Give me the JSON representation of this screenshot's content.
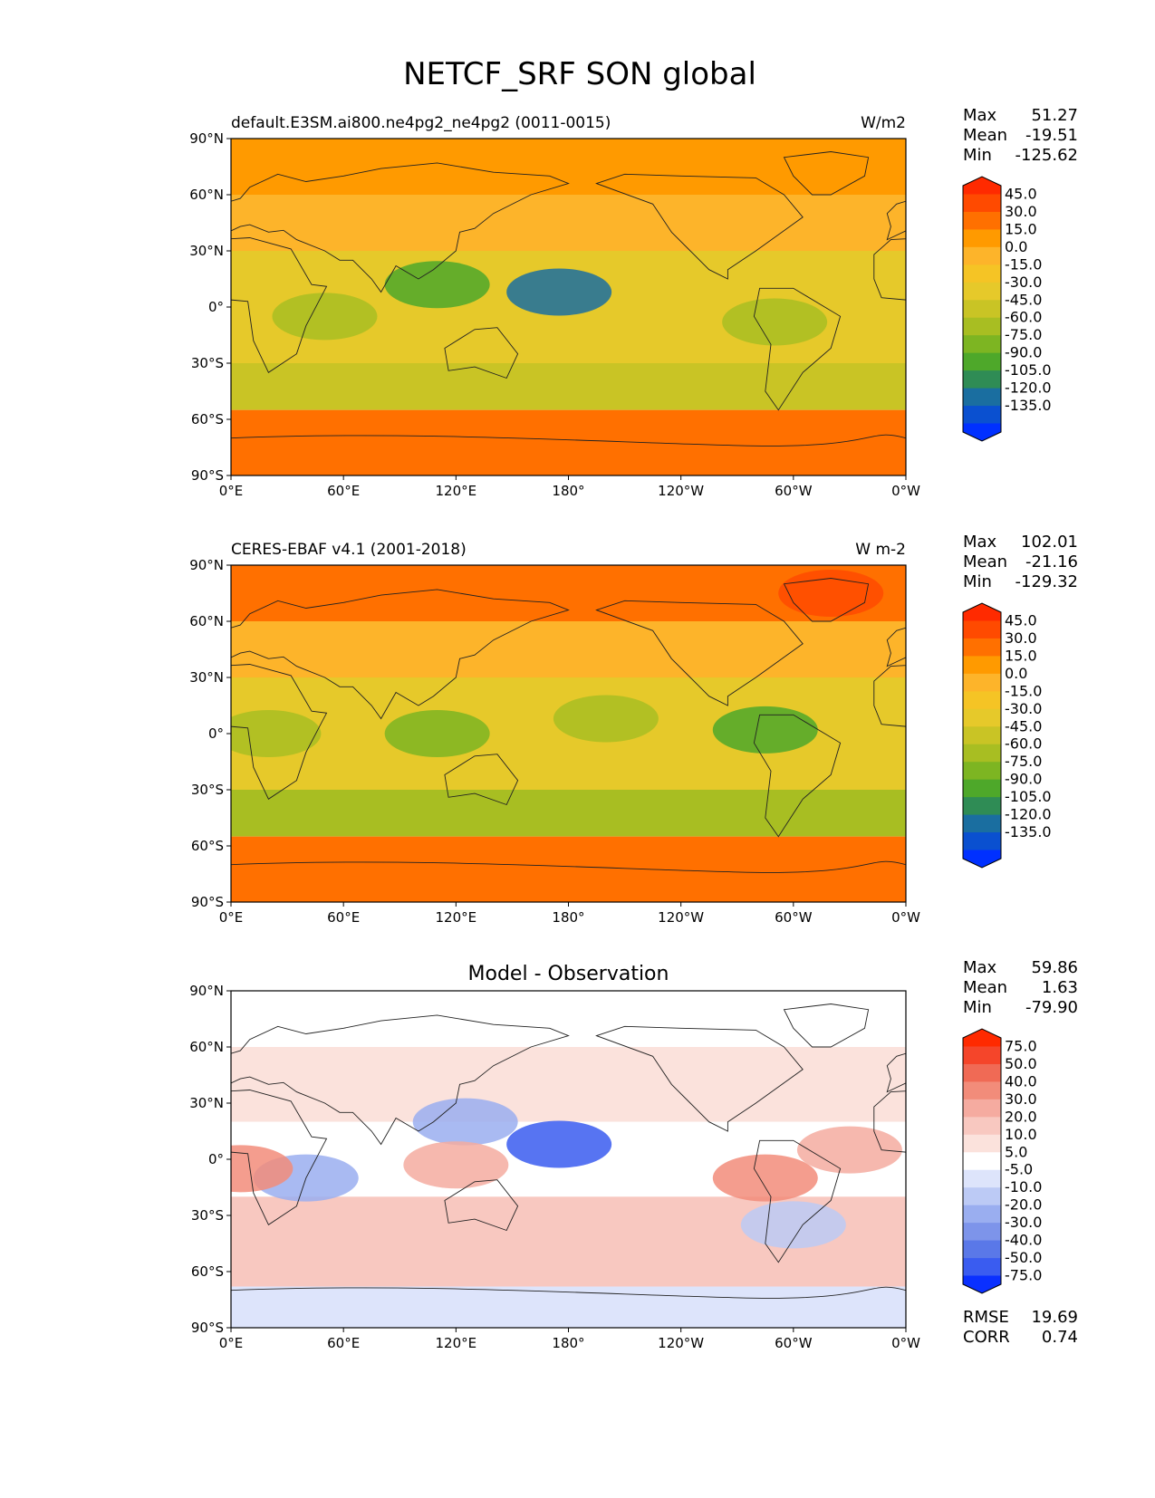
{
  "title": "NETCF_SRF SON global",
  "lat_ticks": [
    "90°N",
    "60°N",
    "30°N",
    "0°",
    "30°S",
    "60°S",
    "90°S"
  ],
  "lon_ticks": [
    "0°E",
    "60°E",
    "120°E",
    "180°",
    "120°W",
    "60°W",
    "0°W"
  ],
  "stat_labels": {
    "max": "Max",
    "mean": "Mean",
    "min": "Min",
    "rmse": "RMSE",
    "corr": "CORR"
  },
  "panels": [
    {
      "title_left": "default.E3SM.ai800.ne4pg2_ne4pg2 (0011-0015)",
      "title_center": "",
      "title_right": "W/m2",
      "stats": {
        "max": "51.27",
        "mean": "-19.51",
        "min": "-125.62"
      },
      "colorbar_labels": [
        "45.0",
        "30.0",
        "15.0",
        "0.0",
        "-15.0",
        "-30.0",
        "-45.0",
        "-60.0",
        "-75.0",
        "-90.0",
        "-105.0",
        "-120.0",
        "-135.0"
      ],
      "colorbar_colors": [
        "#ff2a00",
        "#ff4a00",
        "#ff7000",
        "#ff9a00",
        "#fdb42a",
        "#f5c425",
        "#e6c92a",
        "#c9c425",
        "#a8be22",
        "#7db522",
        "#4ea82a",
        "#2f8c55",
        "#1a6ea0",
        "#0a50d0",
        "#0030ff"
      ]
    },
    {
      "title_left": "CERES-EBAF v4.1 (2001-2018)",
      "title_center": "",
      "title_right": "W m-2",
      "stats": {
        "max": "102.01",
        "mean": "-21.16",
        "min": "-129.32"
      },
      "colorbar_labels": [
        "45.0",
        "30.0",
        "15.0",
        "0.0",
        "-15.0",
        "-30.0",
        "-45.0",
        "-60.0",
        "-75.0",
        "-90.0",
        "-105.0",
        "-120.0",
        "-135.0"
      ],
      "colorbar_colors": [
        "#ff2a00",
        "#ff4a00",
        "#ff7000",
        "#ff9a00",
        "#fdb42a",
        "#f5c425",
        "#e6c92a",
        "#c9c425",
        "#a8be22",
        "#7db522",
        "#4ea82a",
        "#2f8c55",
        "#1a6ea0",
        "#0a50d0",
        "#0030ff"
      ]
    },
    {
      "title_left": "",
      "title_center": "Model - Observation",
      "title_right": "",
      "stats": {
        "max": "59.86",
        "mean": "1.63",
        "min": "-79.90",
        "rmse": "19.69",
        "corr": "0.74"
      },
      "colorbar_labels": [
        "75.0",
        "50.0",
        "40.0",
        "30.0",
        "20.0",
        "10.0",
        "5.0",
        "-5.0",
        "-10.0",
        "-20.0",
        "-30.0",
        "-40.0",
        "-50.0",
        "-75.0"
      ],
      "colorbar_colors": [
        "#ff2a00",
        "#f5452a",
        "#f06a55",
        "#f28c7a",
        "#f5aba0",
        "#f8c8c0",
        "#fbe2dc",
        "#ffffff",
        "#dde4fb",
        "#bccaf5",
        "#9aaef0",
        "#7d94ea",
        "#5a78e8",
        "#3a5cf0",
        "#0a30ff"
      ]
    }
  ],
  "chart_data": [
    {
      "type": "heatmap",
      "title": "default.E3SM.ai800.ne4pg2_ne4pg2 (0011-0015)",
      "units": "W/m2",
      "x_ticks": [
        "0°E",
        "60°E",
        "120°E",
        "180°",
        "120°W",
        "60°W",
        "0°W"
      ],
      "y_ticks": [
        "90°N",
        "60°N",
        "30°N",
        "0°",
        "30°S",
        "60°S",
        "90°S"
      ],
      "xlim": [
        0,
        360
      ],
      "ylim": [
        -90,
        90
      ],
      "stats": {
        "max": 51.27,
        "mean": -19.51,
        "min": -125.62
      },
      "contour_levels": [
        -135,
        -120,
        -105,
        -90,
        -75,
        -60,
        -45,
        -30,
        -15,
        0,
        15,
        30,
        45
      ],
      "bands": [
        {
          "lat": [
            60,
            90
          ],
          "value": 25
        },
        {
          "lat": [
            30,
            60
          ],
          "value": 5
        },
        {
          "lat": [
            -30,
            30
          ],
          "value": -30
        },
        {
          "lat": [
            -55,
            -30
          ],
          "value": -45
        },
        {
          "lat": [
            -90,
            -55
          ],
          "value": 30
        }
      ],
      "features": [
        {
          "lon": 175,
          "lat": 8,
          "value": -120
        },
        {
          "lon": 110,
          "lat": 12,
          "value": -90
        },
        {
          "lon": 290,
          "lat": -8,
          "value": -55
        },
        {
          "lon": 50,
          "lat": -5,
          "value": -50
        }
      ]
    },
    {
      "type": "heatmap",
      "title": "CERES-EBAF v4.1 (2001-2018)",
      "units": "W m-2",
      "x_ticks": [
        "0°E",
        "60°E",
        "120°E",
        "180°",
        "120°W",
        "60°W",
        "0°W"
      ],
      "y_ticks": [
        "90°N",
        "60°N",
        "30°N",
        "0°",
        "30°S",
        "60°S",
        "90°S"
      ],
      "xlim": [
        0,
        360
      ],
      "ylim": [
        -90,
        90
      ],
      "stats": {
        "max": 102.01,
        "mean": -21.16,
        "min": -129.32
      },
      "contour_levels": [
        -135,
        -120,
        -105,
        -90,
        -75,
        -60,
        -45,
        -30,
        -15,
        0,
        15,
        30,
        45
      ],
      "bands": [
        {
          "lat": [
            60,
            90
          ],
          "value": 35
        },
        {
          "lat": [
            30,
            60
          ],
          "value": 0
        },
        {
          "lat": [
            -30,
            30
          ],
          "value": -30
        },
        {
          "lat": [
            -55,
            -30
          ],
          "value": -55
        },
        {
          "lat": [
            -90,
            -55
          ],
          "value": 30
        }
      ],
      "features": [
        {
          "lon": 110,
          "lat": 0,
          "value": -75
        },
        {
          "lon": 200,
          "lat": 8,
          "value": -55
        },
        {
          "lon": 285,
          "lat": 2,
          "value": -90
        },
        {
          "lon": 20,
          "lat": 0,
          "value": -60
        },
        {
          "lon": 320,
          "lat": 75,
          "value": 60
        }
      ]
    },
    {
      "type": "heatmap",
      "title": "Model - Observation",
      "units": "",
      "x_ticks": [
        "0°E",
        "60°E",
        "120°E",
        "180°",
        "120°W",
        "60°W",
        "0°W"
      ],
      "y_ticks": [
        "90°N",
        "60°N",
        "30°N",
        "0°",
        "30°S",
        "60°S",
        "90°S"
      ],
      "xlim": [
        0,
        360
      ],
      "ylim": [
        -90,
        90
      ],
      "stats": {
        "max": 59.86,
        "mean": 1.63,
        "min": -79.9,
        "rmse": 19.69,
        "corr": 0.74
      },
      "contour_levels": [
        -75,
        -50,
        -40,
        -30,
        -20,
        -10,
        -5,
        5,
        10,
        20,
        30,
        40,
        50,
        75
      ],
      "bands": [
        {
          "lat": [
            60,
            90
          ],
          "value": -5
        },
        {
          "lat": [
            20,
            60
          ],
          "value": 5
        },
        {
          "lat": [
            -20,
            20
          ],
          "value": 0
        },
        {
          "lat": [
            -68,
            -20
          ],
          "value": 15
        },
        {
          "lat": [
            -90,
            -68
          ],
          "value": -10
        }
      ],
      "features": [
        {
          "lon": 175,
          "lat": 8,
          "value": -60
        },
        {
          "lon": 125,
          "lat": 20,
          "value": -30
        },
        {
          "lon": 40,
          "lat": -10,
          "value": -30
        },
        {
          "lon": 285,
          "lat": -10,
          "value": 35
        },
        {
          "lon": 120,
          "lat": -3,
          "value": 25
        },
        {
          "lon": 5,
          "lat": -5,
          "value": 30
        },
        {
          "lon": 330,
          "lat": 5,
          "value": 25
        },
        {
          "lon": 300,
          "lat": -35,
          "value": -20
        }
      ]
    }
  ]
}
